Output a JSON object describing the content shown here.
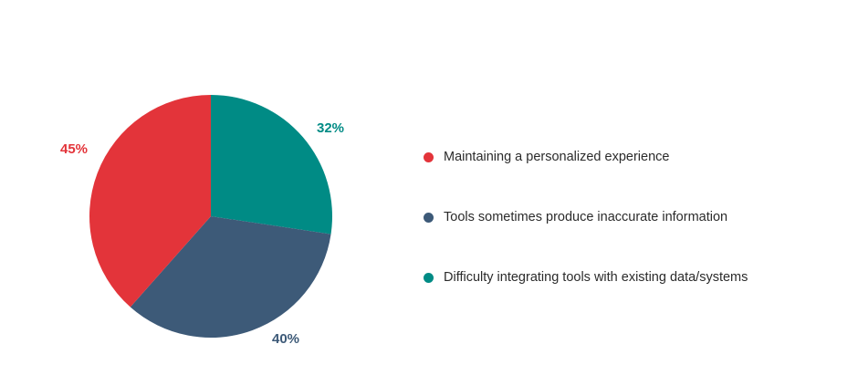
{
  "chart_data": {
    "type": "pie",
    "title": "",
    "slices": [
      {
        "label": "Maintaining a personalized experience",
        "value": 45,
        "display": "45%",
        "color": "#E3343A"
      },
      {
        "label": "Tools sometimes produce inaccurate information",
        "value": 40,
        "display": "40%",
        "color": "#3D5A78"
      },
      {
        "label": "Difficulty integrating tools with existing data/systems",
        "value": 32,
        "display": "32%",
        "color": "#008B85"
      }
    ],
    "legend_position": "right"
  },
  "legend": {
    "items": [
      {
        "label": "Maintaining a personalized experience",
        "color": "#E3343A"
      },
      {
        "label": "Tools sometimes produce inaccurate information",
        "color": "#3D5A78"
      },
      {
        "label": "Difficulty integrating tools with existing data/systems",
        "color": "#008B85"
      }
    ]
  }
}
